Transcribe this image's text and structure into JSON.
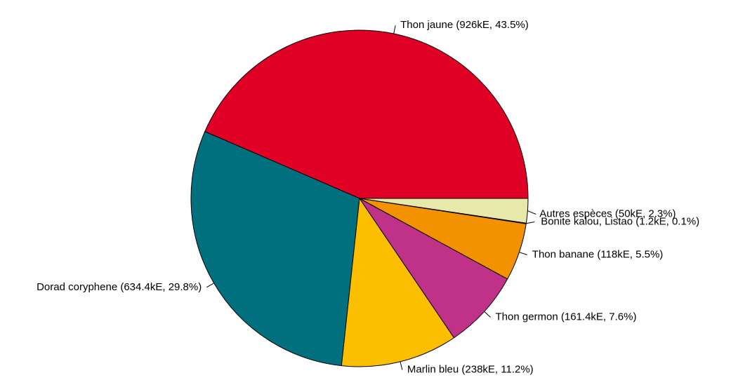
{
  "chart_data": {
    "type": "pie",
    "title": "",
    "slices": [
      {
        "label": "Thon jaune (926kE, 43.5%)",
        "value": 926,
        "percent": 43.5,
        "color": "#E00026"
      },
      {
        "label": "Dorad coryphene (634.4kE, 29.8%)",
        "value": 634.4,
        "percent": 29.8,
        "color": "#00707E"
      },
      {
        "label": "Marlin bleu (238kE, 11.2%)",
        "value": 238,
        "percent": 11.2,
        "color": "#FBBF00"
      },
      {
        "label": "Thon germon (161.4kE, 7.6%)",
        "value": 161.4,
        "percent": 7.6,
        "color": "#BF3288"
      },
      {
        "label": "Thon banane (118kE, 5.5%)",
        "value": 118,
        "percent": 5.5,
        "color": "#F29200"
      },
      {
        "label": "Bonite kalou, Listao (1.2kE, 0.1%)",
        "value": 1.2,
        "percent": 0.1,
        "color": "#FFFFFF"
      },
      {
        "label": "Autres espèces (50kE, 2.3%)",
        "value": 50,
        "percent": 2.3,
        "color": "#E8E8AA"
      }
    ],
    "direction": "counterclockwise",
    "start": "3 o'clock"
  }
}
